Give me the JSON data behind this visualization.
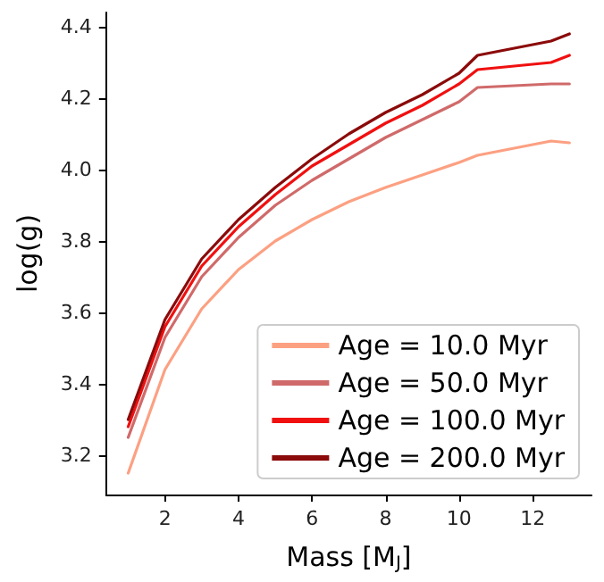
{
  "chart_data": {
    "type": "line",
    "xlabel": "Mass [M$_{J}$]",
    "ylabel": "log(g)",
    "x": [
      1,
      2,
      3,
      4,
      5,
      6,
      7,
      8,
      9,
      10,
      10.5,
      12.5,
      13
    ],
    "series": [
      {
        "name": "Age = 10.0 Myr",
        "color": "#fca082",
        "values": [
          3.15,
          3.44,
          3.61,
          3.72,
          3.8,
          3.86,
          3.91,
          3.95,
          3.985,
          4.02,
          4.04,
          4.08,
          4.075
        ]
      },
      {
        "name": "Age = 50.0 Myr",
        "color": "#d06a6a",
        "values": [
          3.25,
          3.53,
          3.7,
          3.81,
          3.9,
          3.97,
          4.03,
          4.09,
          4.14,
          4.19,
          4.23,
          4.24,
          4.24
        ]
      },
      {
        "name": "Age = 100.0 Myr",
        "color": "#f01010",
        "values": [
          3.28,
          3.56,
          3.73,
          3.84,
          3.93,
          4.01,
          4.07,
          4.13,
          4.18,
          4.24,
          4.28,
          4.3,
          4.32
        ]
      },
      {
        "name": "Age = 200.0 Myr",
        "color": "#8b0a0a",
        "values": [
          3.3,
          3.58,
          3.75,
          3.86,
          3.95,
          4.03,
          4.1,
          4.16,
          4.21,
          4.27,
          4.32,
          4.36,
          4.38
        ]
      }
    ],
    "xlim": [
      0.4,
      13.6
    ],
    "ylim": [
      3.09,
      4.44
    ],
    "xticks": [
      2,
      4,
      6,
      8,
      10,
      12
    ],
    "yticks": [
      3.2,
      3.4,
      3.6,
      3.8,
      {
        "value": 4,
        "label": "4.0"
      },
      4.2,
      4.4
    ],
    "grid": false,
    "legend": "bottom right",
    "marker": "none",
    "line_style": "solid"
  }
}
